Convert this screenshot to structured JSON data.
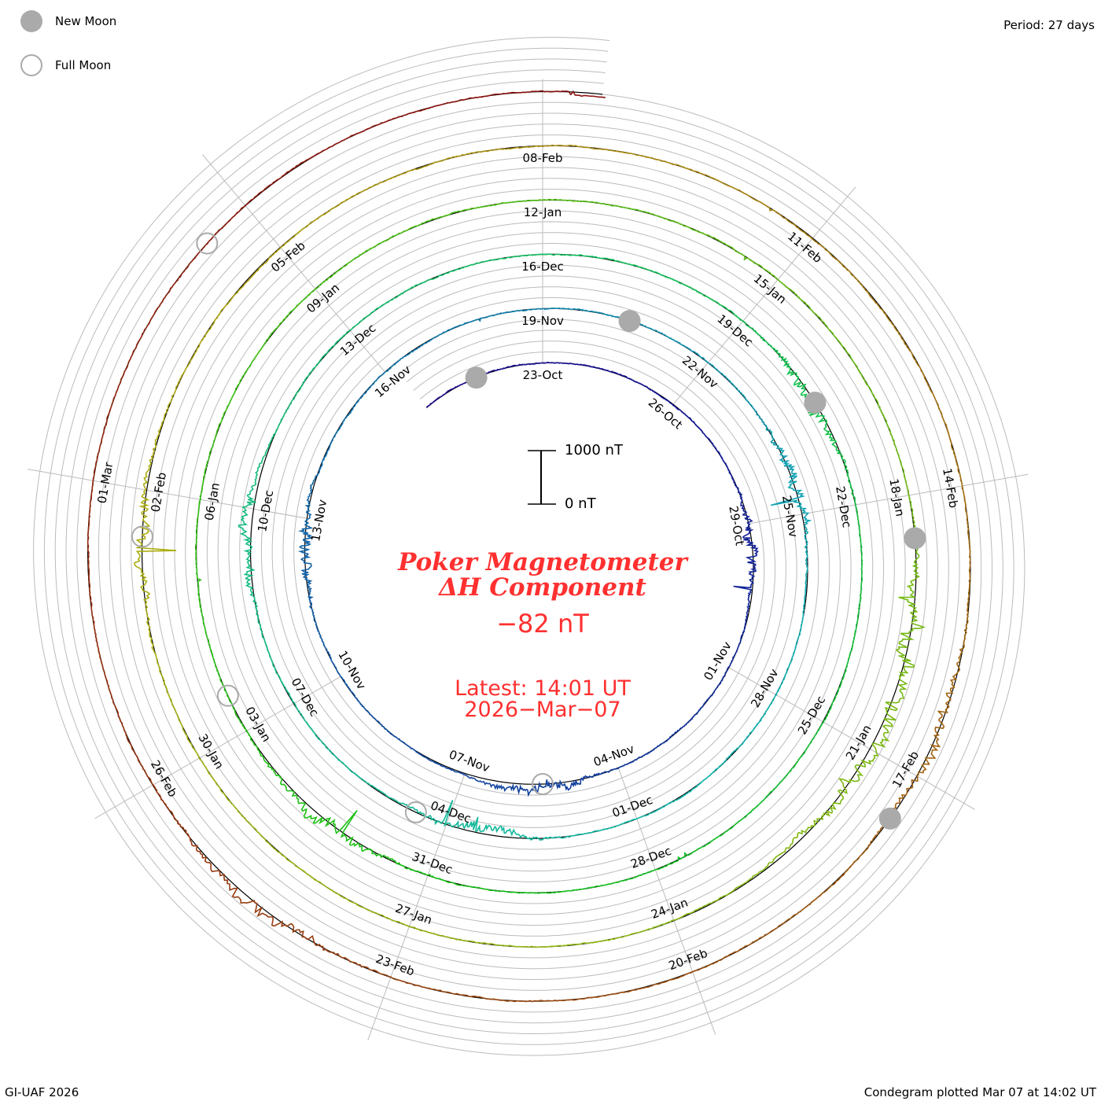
{
  "legend": {
    "new_moon": "New Moon",
    "full_moon": "Full Moon"
  },
  "period_label": "Period: 27 days",
  "footer_left": "GI-UAF 2026",
  "footer_right": "Condegram plotted Mar 07 at 14:02 UT",
  "scale": {
    "top": "1000 nT",
    "bottom": "0 nT"
  },
  "center": {
    "title_line1": "Poker Magnetometer",
    "title_line2": "ΔH Component",
    "value": "−82 nT",
    "latest_line1": "Latest: 14:01 UT",
    "latest_line2": "2026−Mar−07"
  },
  "colors": {
    "title": "#ff3030",
    "grid": "#bbbbbb",
    "baseline": "#000000",
    "moon": "#aaaaaa"
  },
  "chart_data": {
    "type": "line",
    "subtype": "spiral condegram",
    "title": "Poker Magnetometer ΔH Component",
    "period_days": 27,
    "start_date": "2025-10-20",
    "end": "2026-03-07 14:01 UT",
    "latest_value_nT": -82,
    "units": "nT",
    "scale_bar_nT": [
      0,
      1000
    ],
    "date_labels": [
      "23-Oct",
      "26-Oct",
      "29-Oct",
      "01-Nov",
      "04-Nov",
      "07-Nov",
      "10-Nov",
      "13-Nov",
      "16-Nov",
      "19-Nov",
      "22-Nov",
      "25-Nov",
      "28-Nov",
      "01-Dec",
      "04-Dec",
      "07-Dec",
      "10-Dec",
      "13-Dec",
      "16-Dec",
      "19-Dec",
      "22-Dec",
      "25-Dec",
      "28-Dec",
      "31-Dec",
      "03-Jan",
      "06-Jan",
      "09-Jan",
      "12-Jan",
      "15-Jan",
      "18-Jan",
      "21-Jan",
      "24-Jan",
      "27-Jan",
      "30-Jan",
      "02-Feb",
      "05-Feb",
      "08-Feb",
      "11-Feb",
      "14-Feb",
      "17-Feb",
      "20-Feb",
      "23-Feb",
      "26-Feb",
      "01-Mar"
    ],
    "new_moons": [
      "2025-10-21",
      "2025-11-20",
      "2025-12-20",
      "2026-01-18",
      "2026-02-17"
    ],
    "full_moons": [
      "2025-11-05",
      "2025-12-04",
      "2026-01-03",
      "2026-02-01",
      "2026-03-03"
    ],
    "disturbed_days": [
      "2025-10-29",
      "2025-11-05",
      "2025-11-12",
      "2025-11-24",
      "2025-12-03",
      "2025-12-09",
      "2025-12-20",
      "2026-01-01",
      "2026-01-19",
      "2026-01-20",
      "2026-01-21",
      "2026-02-01",
      "2026-02-16",
      "2026-02-24"
    ]
  }
}
